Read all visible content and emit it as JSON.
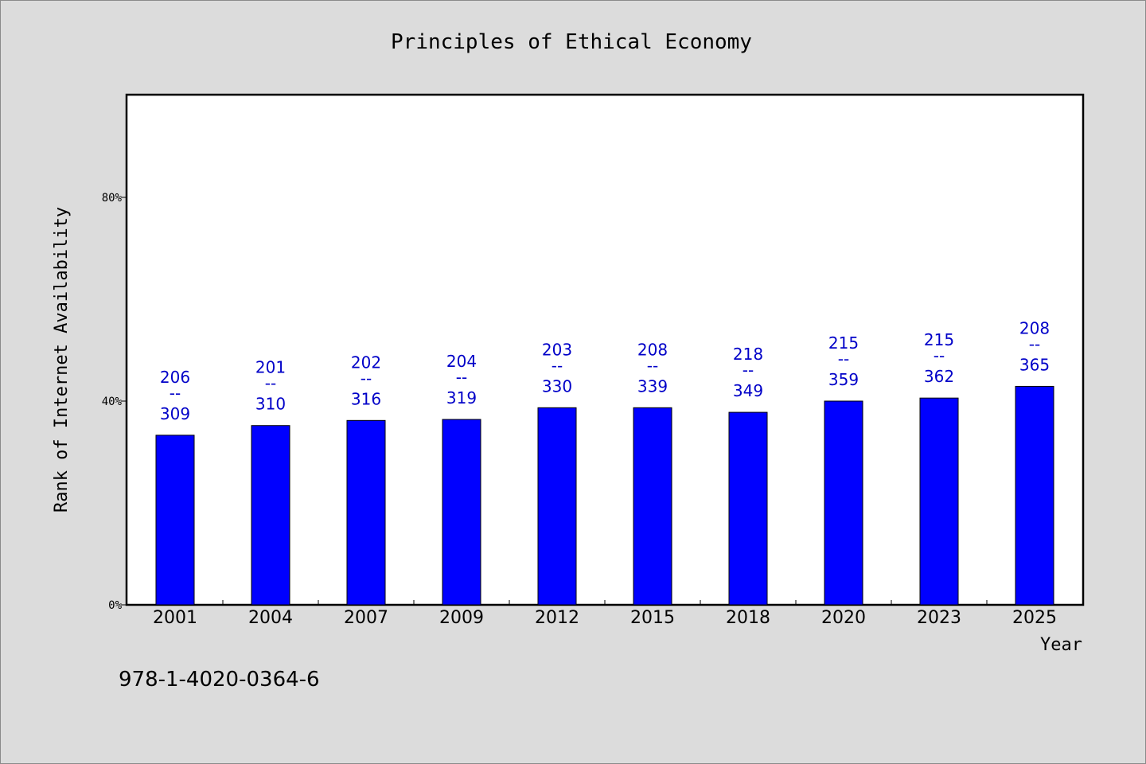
{
  "chart_data": {
    "type": "bar",
    "title": "Principles of Ethical Economy",
    "xlabel": "Year",
    "ylabel": "Rank of Internet Availability",
    "categories": [
      "2001",
      "2004",
      "2007",
      "2009",
      "2012",
      "2015",
      "2018",
      "2020",
      "2023",
      "2025"
    ],
    "values": [
      33.3,
      35.2,
      36.2,
      36.4,
      38.7,
      38.7,
      37.8,
      40.0,
      40.6,
      42.9
    ],
    "data_labels": [
      {
        "top": "206",
        "sep": "--",
        "bottom": "309"
      },
      {
        "top": "201",
        "sep": "--",
        "bottom": "310"
      },
      {
        "top": "202",
        "sep": "--",
        "bottom": "316"
      },
      {
        "top": "204",
        "sep": "--",
        "bottom": "319"
      },
      {
        "top": "203",
        "sep": "--",
        "bottom": "330"
      },
      {
        "top": "208",
        "sep": "--",
        "bottom": "339"
      },
      {
        "top": "218",
        "sep": "--",
        "bottom": "349"
      },
      {
        "top": "215",
        "sep": "--",
        "bottom": "359"
      },
      {
        "top": "215",
        "sep": "--",
        "bottom": "362"
      },
      {
        "top": "208",
        "sep": "--",
        "bottom": "365"
      }
    ],
    "yticks": [
      {
        "value": 0,
        "label": "0%"
      },
      {
        "value": 40,
        "label": "40%"
      },
      {
        "value": 80,
        "label": "80%"
      }
    ],
    "ylim": [
      0,
      100
    ],
    "grid": false,
    "legend": "none",
    "bar_color": "#0000ff",
    "label_color": "#0000c8",
    "background_color": "#dcdcdc",
    "plot_background": "#ffffff"
  },
  "footer": {
    "isbn": "978-1-4020-0364-6"
  }
}
